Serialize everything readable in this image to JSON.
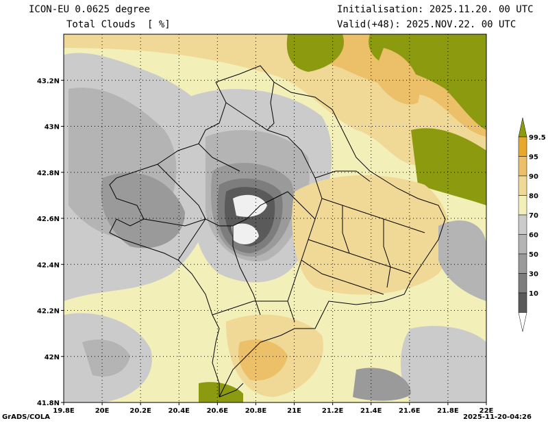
{
  "header": {
    "model_title": "ICON-EU 0.0625 degree",
    "variable_title": "Total Clouds  [ %]",
    "initialisation": "Initialisation: 2025.11.20. 00 UTC",
    "valid": "Valid(+48): 2025.NOV.22. 00 UTC"
  },
  "footer": {
    "credit": "GrADS/COLA",
    "timestamp": "2025-11-20-04:26"
  },
  "map": {
    "lon_range": [
      19.8,
      22.0
    ],
    "lat_range": [
      41.8,
      43.4
    ],
    "x_ticks": [
      {
        "value": 19.8,
        "label": "19.8E"
      },
      {
        "value": 20.0,
        "label": "20E"
      },
      {
        "value": 20.2,
        "label": "20.2E"
      },
      {
        "value": 20.4,
        "label": "20.4E"
      },
      {
        "value": 20.6,
        "label": "20.6E"
      },
      {
        "value": 20.8,
        "label": "20.8E"
      },
      {
        "value": 21.0,
        "label": "21E"
      },
      {
        "value": 21.2,
        "label": "21.2E"
      },
      {
        "value": 21.4,
        "label": "21.4E"
      },
      {
        "value": 21.6,
        "label": "21.6E"
      },
      {
        "value": 21.8,
        "label": "21.8E"
      },
      {
        "value": 22.0,
        "label": "22E"
      }
    ],
    "y_ticks": [
      {
        "value": 41.8,
        "label": "41.8N"
      },
      {
        "value": 42.0,
        "label": "42N"
      },
      {
        "value": 42.2,
        "label": "42.2N"
      },
      {
        "value": 42.4,
        "label": "42.4N"
      },
      {
        "value": 42.6,
        "label": "42.6N"
      },
      {
        "value": 42.8,
        "label": "42.8N"
      },
      {
        "value": 43.0,
        "label": "43N"
      },
      {
        "value": 43.2,
        "label": "43.2N"
      }
    ],
    "grid": "dotted"
  },
  "legend": {
    "levels": [
      {
        "label": "10",
        "color": "#5a5a5a"
      },
      {
        "label": "30",
        "color": "#7d7d7d"
      },
      {
        "label": "50",
        "color": "#9a9a9a"
      },
      {
        "label": "60",
        "color": "#b4b4b4"
      },
      {
        "label": "70",
        "color": "#cbcbcb"
      },
      {
        "label": "80",
        "color": "#f2f0b8"
      },
      {
        "label": "90",
        "color": "#f0d896"
      },
      {
        "label": "95",
        "color": "#ecc068"
      },
      {
        "label": "99.5",
        "color": "#e8a82c"
      }
    ],
    "lower_color": "#ffffff",
    "upper_color": "#8c9a10"
  },
  "colors": {
    "very_clear": "#f5f5f5",
    "dark_gray": "#5a5a5a",
    "mid_gray": "#9a9a9a",
    "light_gray": "#cbcbcb",
    "pale_yellow": "#f2f0b8",
    "light_orange": "#f0d896",
    "orange": "#ecc068",
    "deep_orange": "#e8a82c",
    "olive": "#8c9a10"
  }
}
